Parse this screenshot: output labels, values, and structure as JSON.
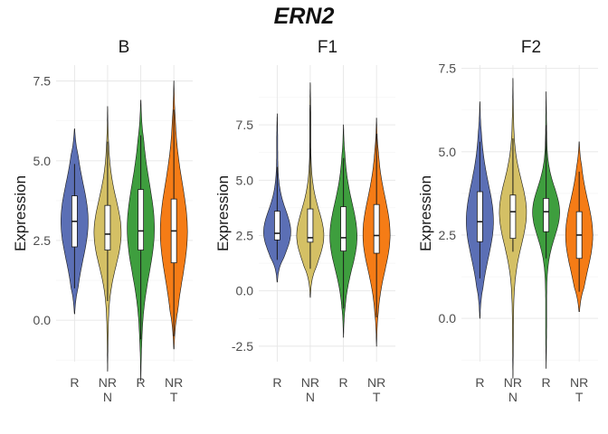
{
  "title": "ERN2",
  "colors": {
    "R_N": "#5b6fb5",
    "NR_N": "#d4c065",
    "R_T": "#3e9e3e",
    "NR_T": "#f57c16"
  },
  "chart_data": [
    {
      "type": "violin",
      "panel": "B",
      "ylabel": "Expression",
      "ylim": [
        -1.3,
        8.0
      ],
      "yticks": [
        0.0,
        2.5,
        5.0,
        7.5
      ],
      "ytick_labels": [
        "0.0",
        "2.5",
        "5.0",
        "7.5"
      ],
      "x_tick_labels": [
        "R",
        "NR\nN",
        "R",
        "NR\nT"
      ],
      "groups": [
        {
          "label": "R",
          "color_key": "R_N",
          "min": 0.2,
          "max": 6.0,
          "q1": 2.3,
          "median": 3.1,
          "q3": 3.9,
          "whisker_low": 1.0,
          "whisker_high": 4.9
        },
        {
          "label": "NR",
          "color_key": "NR_N",
          "min": -1.6,
          "max": 6.7,
          "q1": 2.2,
          "median": 2.7,
          "q3": 3.6,
          "whisker_low": 0.6,
          "whisker_high": 5.6
        },
        {
          "label": "R",
          "color_key": "R_T",
          "min": -1.9,
          "max": 6.9,
          "q1": 2.2,
          "median": 2.8,
          "q3": 4.1,
          "whisker_low": -0.6,
          "whisker_high": 5.8
        },
        {
          "label": "NR",
          "color_key": "NR_T",
          "min": -0.9,
          "max": 7.5,
          "q1": 1.8,
          "median": 2.8,
          "q3": 3.8,
          "whisker_low": -0.5,
          "whisker_high": 6.6
        }
      ]
    },
    {
      "type": "violin",
      "panel": "F1",
      "ylabel": "Expression",
      "ylim": [
        -3.2,
        10.2
      ],
      "yticks": [
        -2.5,
        0.0,
        2.5,
        5.0,
        7.5
      ],
      "ytick_labels": [
        "-2.5",
        "0.0",
        "2.5",
        "5.0",
        "7.5"
      ],
      "x_tick_labels": [
        "R",
        "NR\nN",
        "R",
        "NR\nT"
      ],
      "groups": [
        {
          "label": "R",
          "color_key": "R_N",
          "min": 0.4,
          "max": 8.0,
          "q1": 2.3,
          "median": 2.6,
          "q3": 3.6,
          "whisker_low": 1.4,
          "whisker_high": 5.6
        },
        {
          "label": "NR",
          "color_key": "NR_N",
          "min": -0.3,
          "max": 9.4,
          "q1": 2.2,
          "median": 2.4,
          "q3": 3.7,
          "whisker_low": 1.0,
          "whisker_high": 8.4
        },
        {
          "label": "R",
          "color_key": "R_T",
          "min": -2.1,
          "max": 7.5,
          "q1": 1.8,
          "median": 2.4,
          "q3": 3.8,
          "whisker_low": -0.8,
          "whisker_high": 6.0
        },
        {
          "label": "NR",
          "color_key": "NR_T",
          "min": -2.5,
          "max": 7.8,
          "q1": 1.7,
          "median": 2.5,
          "q3": 3.9,
          "whisker_low": -1.2,
          "whisker_high": 7.1
        }
      ]
    },
    {
      "type": "violin",
      "panel": "F2",
      "ylabel": "Expression",
      "ylim": [
        -1.3,
        7.6
      ],
      "yticks": [
        0.0,
        2.5,
        5.0,
        7.5
      ],
      "ytick_labels": [
        "0.0",
        "2.5",
        "5.0",
        "7.5"
      ],
      "x_tick_labels": [
        "R",
        "NR\nN",
        "R",
        "NR\nT"
      ],
      "groups": [
        {
          "label": "R",
          "color_key": "R_N",
          "min": 0.0,
          "max": 6.5,
          "q1": 2.3,
          "median": 2.9,
          "q3": 3.8,
          "whisker_low": 1.2,
          "whisker_high": 5.3
        },
        {
          "label": "NR",
          "color_key": "NR_N",
          "min": -1.8,
          "max": 7.2,
          "q1": 2.4,
          "median": 3.2,
          "q3": 3.7,
          "whisker_low": 2.0,
          "whisker_high": 5.4
        },
        {
          "label": "R",
          "color_key": "R_T",
          "min": -1.5,
          "max": 6.8,
          "q1": 2.6,
          "median": 3.2,
          "q3": 3.6,
          "whisker_low": 1.8,
          "whisker_high": 5.8
        },
        {
          "label": "NR",
          "color_key": "NR_T",
          "min": 0.2,
          "max": 5.3,
          "q1": 1.8,
          "median": 2.5,
          "q3": 3.2,
          "whisker_low": 0.8,
          "whisker_high": 4.4
        }
      ]
    }
  ]
}
